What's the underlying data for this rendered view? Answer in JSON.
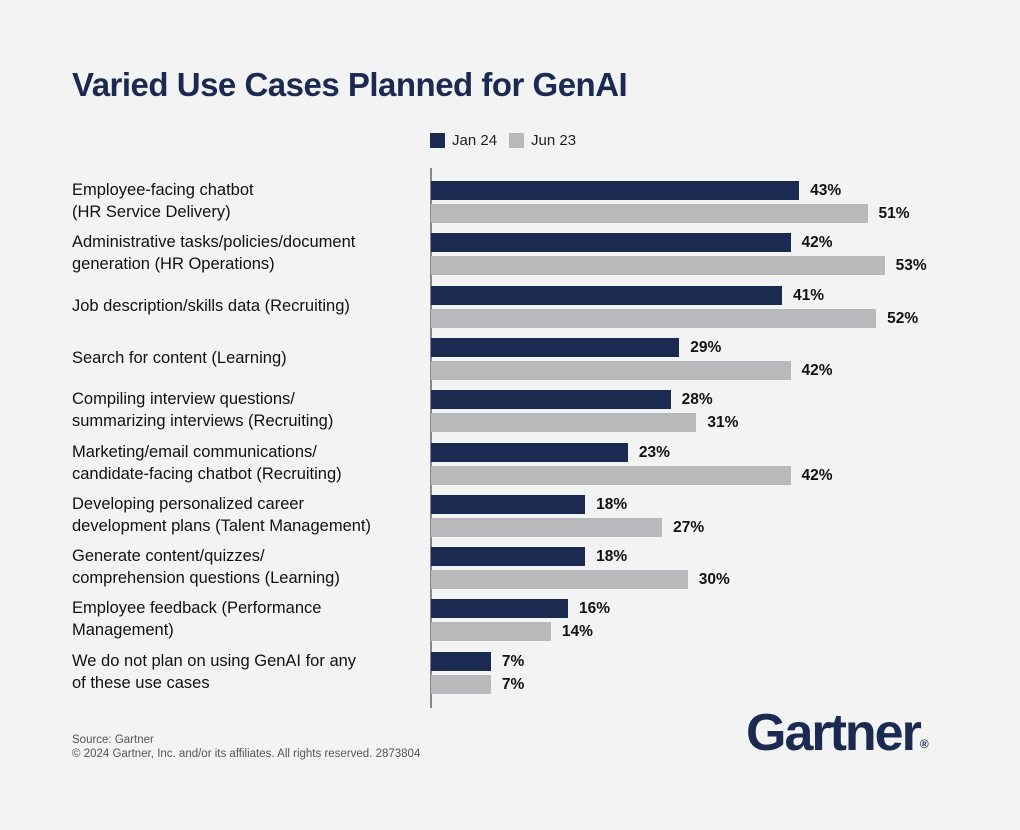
{
  "chart_data": {
    "type": "bar",
    "orientation": "horizontal",
    "title": "Varied Use Cases Planned for GenAI",
    "categories": [
      [
        "Employee-facing chatbot",
        "(HR Service Delivery)"
      ],
      [
        "Administrative tasks/policies/document",
        "generation (HR Operations)"
      ],
      [
        "Job description/skills data (Recruiting)"
      ],
      [
        "Search for content (Learning)"
      ],
      [
        "Compiling interview questions/",
        "summarizing interviews (Recruiting)"
      ],
      [
        "Marketing/email communications/",
        "candidate-facing chatbot (Recruiting)"
      ],
      [
        "Developing personalized career",
        "development plans (Talent Management)"
      ],
      [
        "Generate content/quizzes/",
        "comprehension questions (Learning)"
      ],
      [
        "Employee feedback (Performance",
        "Management)"
      ],
      [
        "We do not plan on using GenAI for any",
        "of these use cases"
      ]
    ],
    "series": [
      {
        "name": "Jan 24",
        "color": "#1a2a50",
        "values": [
          43,
          42,
          41,
          29,
          28,
          23,
          18,
          18,
          16,
          7
        ]
      },
      {
        "name": "Jun 23",
        "color": "#b9b9bb",
        "values": [
          51,
          53,
          52,
          42,
          31,
          42,
          27,
          30,
          14,
          7
        ]
      }
    ],
    "value_suffix": "%",
    "legend_position": "top",
    "grid": false
  },
  "footer": {
    "source": "Source: Gartner",
    "copyright": "© 2024 Gartner, Inc. and/or its affiliates. All rights reserved. 2873804"
  },
  "logo": {
    "text": "Gartner",
    "mark": "®"
  }
}
